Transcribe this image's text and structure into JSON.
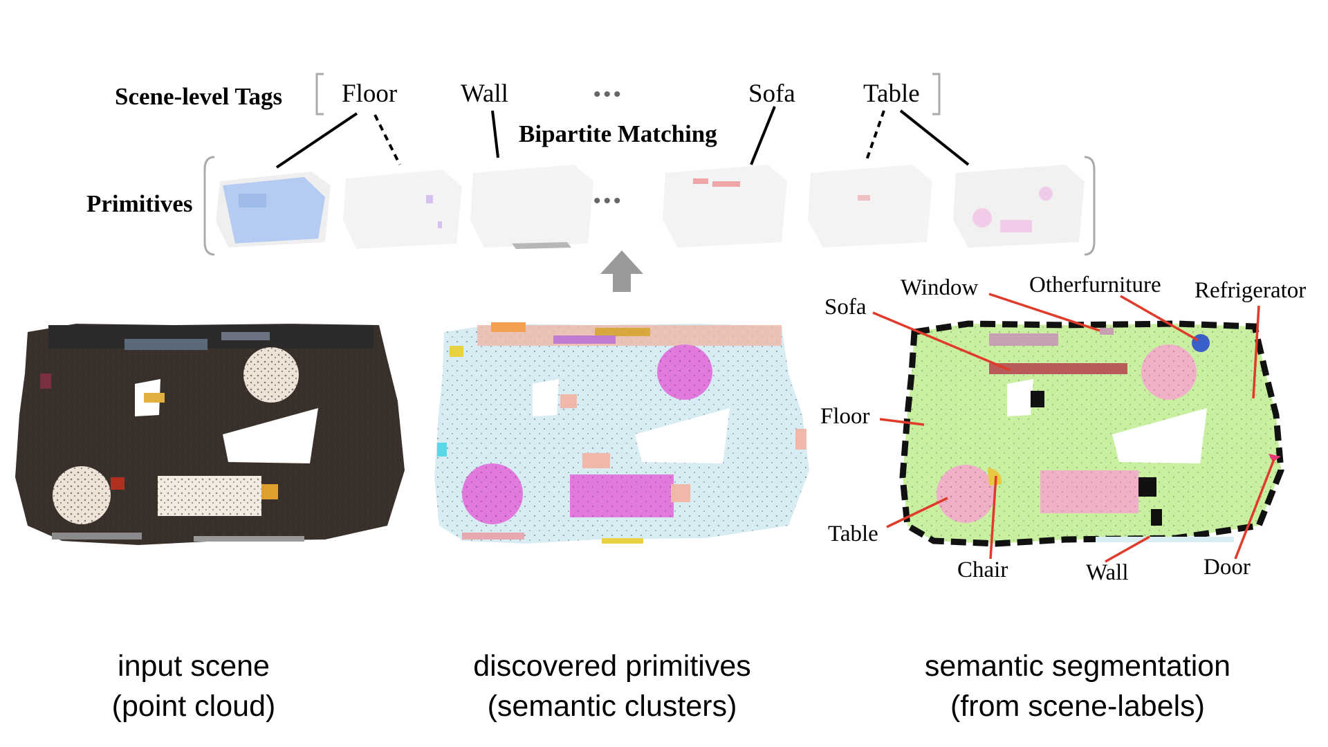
{
  "header": {
    "scene_tags_label": "Scene-level Tags",
    "primitives_label": "Primitives",
    "matching_label": "Bipartite Matching",
    "tags": [
      "Floor",
      "Wall",
      "Sofa",
      "Table"
    ],
    "ellipsis": "•••"
  },
  "segmentation_labels": {
    "sofa": "Sofa",
    "window": "Window",
    "otherfurniture": "Otherfurniture",
    "refrigerator": "Refrigerator",
    "floor": "Floor",
    "table": "Table",
    "chair": "Chair",
    "wall": "Wall",
    "door": "Door"
  },
  "captions": {
    "input": {
      "line1": "input scene",
      "line2": "(point cloud)"
    },
    "primitives": {
      "line1": "discovered primitives",
      "line2": "(semantic clusters)"
    },
    "segmentation": {
      "line1": "semantic segmentation",
      "line2": "(from scene-labels)"
    }
  },
  "colors": {
    "input_floor": "#3a302b",
    "cluster_floor": "#d8ecf4",
    "cluster_magenta": "#e27ade",
    "seg_floor": "#c9f0a0",
    "seg_table": "#f0b0c8",
    "seg_sofa": "#b85a5a",
    "seg_window": "#c8a0b4",
    "seg_other": "#3a5fc8",
    "seg_chair": "#e8c840",
    "seg_door": "#e83a78",
    "leader_red": "#e03a2a",
    "arrow_gray": "#9a9a9a"
  }
}
